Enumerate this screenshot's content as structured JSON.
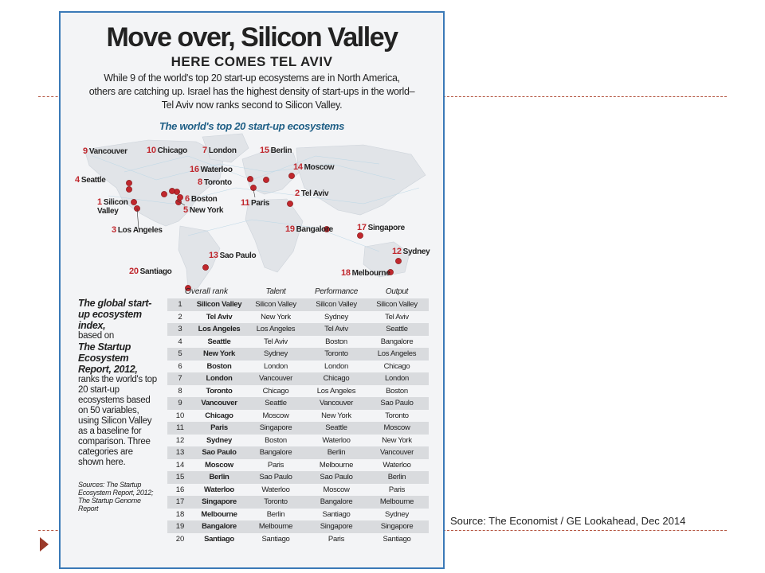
{
  "infographic": {
    "title": "Move over, Silicon Valley",
    "subtitle": "HERE COMES TEL AVIV",
    "intro_lines": [
      "While 9 of the world's top 20 start-up ecosystems are in North America,",
      "others are catching up. Israel has the highest density of start-ups in the world–",
      "Tel Aviv now ranks second to Silicon Valley."
    ],
    "map_title": "The world's top 20 start-up ecosystems",
    "map_cities": [
      {
        "rank": "1",
        "name": "Silicon Valley"
      },
      {
        "rank": "2",
        "name": "Tel Aviv"
      },
      {
        "rank": "3",
        "name": "Los Angeles"
      },
      {
        "rank": "4",
        "name": "Seattle"
      },
      {
        "rank": "5",
        "name": "New York"
      },
      {
        "rank": "6",
        "name": "Boston"
      },
      {
        "rank": "7",
        "name": "London"
      },
      {
        "rank": "8",
        "name": "Toronto"
      },
      {
        "rank": "9",
        "name": "Vancouver"
      },
      {
        "rank": "10",
        "name": "Chicago"
      },
      {
        "rank": "11",
        "name": "Paris"
      },
      {
        "rank": "12",
        "name": "Sydney"
      },
      {
        "rank": "13",
        "name": "Sao Paulo"
      },
      {
        "rank": "14",
        "name": "Moscow"
      },
      {
        "rank": "15",
        "name": "Berlin"
      },
      {
        "rank": "16",
        "name": "Waterloo"
      },
      {
        "rank": "17",
        "name": "Singapore"
      },
      {
        "rank": "18",
        "name": "Melbourne"
      },
      {
        "rank": "19",
        "name": "Bangalore"
      },
      {
        "rank": "20",
        "name": "Santiago"
      }
    ],
    "side_text": {
      "heading": "The global start-up ecosystem index,",
      "body1": "based on",
      "report": "The Startup Ecosystem Report, 2012,",
      "body2": "ranks the world's top 20 start-up ecosystems based on 50 variables, using Silicon Valley as a baseline for comparison. Three categories are shown here.",
      "sources": "Sources: The Startup Ecosystem Report, 2012; The Startup Genome Report"
    },
    "table": {
      "headers": {
        "rank": "Overall rank",
        "talent": "Talent",
        "performance": "Performance",
        "output": "Output"
      },
      "rows": [
        {
          "rank": "1",
          "city": "Silicon Valley",
          "talent": "Silicon Valley",
          "performance": "Silicon Valley",
          "output": "Silicon Valley"
        },
        {
          "rank": "2",
          "city": "Tel Aviv",
          "talent": "New York",
          "performance": "Sydney",
          "output": "Tel Aviv"
        },
        {
          "rank": "3",
          "city": "Los Angeles",
          "talent": "Los Angeles",
          "performance": "Tel Aviv",
          "output": "Seattle"
        },
        {
          "rank": "4",
          "city": "Seattle",
          "talent": "Tel Aviv",
          "performance": "Boston",
          "output": "Bangalore"
        },
        {
          "rank": "5",
          "city": "New York",
          "talent": "Sydney",
          "performance": "Toronto",
          "output": "Los Angeles"
        },
        {
          "rank": "6",
          "city": "Boston",
          "talent": "London",
          "performance": "London",
          "output": "Chicago"
        },
        {
          "rank": "7",
          "city": "London",
          "talent": "Vancouver",
          "performance": "Chicago",
          "output": "London"
        },
        {
          "rank": "8",
          "city": "Toronto",
          "talent": "Chicago",
          "performance": "Los Angeles",
          "output": "Boston"
        },
        {
          "rank": "9",
          "city": "Vancouver",
          "talent": "Seattle",
          "performance": "Vancouver",
          "output": "Sao Paulo"
        },
        {
          "rank": "10",
          "city": "Chicago",
          "talent": "Moscow",
          "performance": "New York",
          "output": "Toronto"
        },
        {
          "rank": "11",
          "city": "Paris",
          "talent": "Singapore",
          "performance": "Seattle",
          "output": "Moscow"
        },
        {
          "rank": "12",
          "city": "Sydney",
          "talent": "Boston",
          "performance": "Waterloo",
          "output": "New York"
        },
        {
          "rank": "13",
          "city": "Sao Paulo",
          "talent": "Bangalore",
          "performance": "Berlin",
          "output": "Vancouver"
        },
        {
          "rank": "14",
          "city": "Moscow",
          "talent": "Paris",
          "performance": "Melbourne",
          "output": "Waterloo"
        },
        {
          "rank": "15",
          "city": "Berlin",
          "talent": "Sao Paulo",
          "performance": "Sao Paulo",
          "output": "Berlin"
        },
        {
          "rank": "16",
          "city": "Waterloo",
          "talent": "Waterloo",
          "performance": "Moscow",
          "output": "Paris"
        },
        {
          "rank": "17",
          "city": "Singapore",
          "talent": "Toronto",
          "performance": "Bangalore",
          "output": "Melbourne"
        },
        {
          "rank": "18",
          "city": "Melbourne",
          "talent": "Berlin",
          "performance": "Santiago",
          "output": "Sydney"
        },
        {
          "rank": "19",
          "city": "Bangalore",
          "talent": "Melbourne",
          "performance": "Singapore",
          "output": "Singapore"
        },
        {
          "rank": "20",
          "city": "Santiago",
          "talent": "Santiago",
          "performance": "Paris",
          "output": "Santiago"
        }
      ]
    }
  },
  "slide": {
    "source": "Source: The Economist / GE Lookahead, Dec 2014"
  },
  "colors": {
    "frame": "#3a79b7",
    "marker": "#c0272d",
    "map_title": "#1f5f86",
    "accent": "#9a3a2a"
  }
}
